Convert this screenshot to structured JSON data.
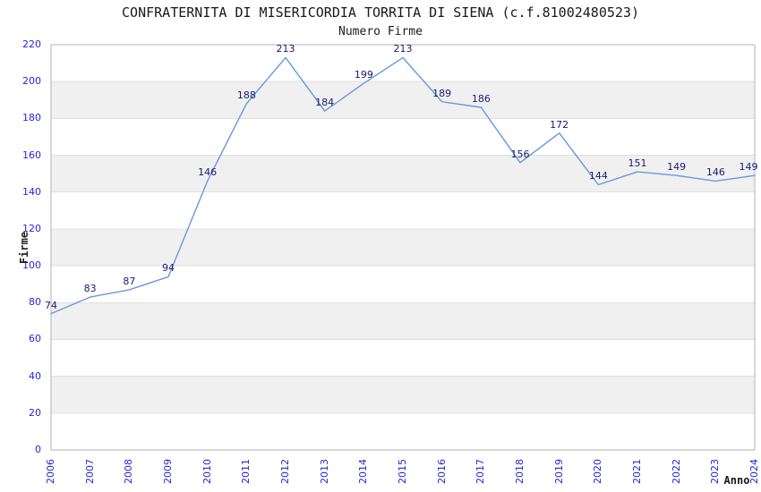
{
  "chart_data": {
    "type": "line",
    "title": "CONFRATERNITA DI MISERICORDIA TORRITA DI SIENA (c.f.81002480523)",
    "subtitle": "Numero Firme",
    "xlabel": "Anno",
    "ylabel": "Firme",
    "categories": [
      "2006",
      "2007",
      "2008",
      "2009",
      "2010",
      "2011",
      "2012",
      "2013",
      "2014",
      "2015",
      "2016",
      "2017",
      "2018",
      "2019",
      "2020",
      "2021",
      "2022",
      "2023",
      "2024"
    ],
    "values": [
      74,
      83,
      87,
      94,
      146,
      188,
      213,
      184,
      199,
      213,
      189,
      186,
      156,
      172,
      144,
      151,
      149,
      146,
      149
    ],
    "ylim": [
      0,
      220
    ],
    "ytick_step": 20,
    "grid": true,
    "banded_background": true,
    "legend_position": "none",
    "data_labels_shown": true,
    "colors": {
      "line": "#6699dd",
      "tick_labels": "#2626d8",
      "data_labels": "#191970",
      "band": "#f0f0f0",
      "grid": "#e0e0e0",
      "border": "#b3b3b3",
      "text": "#1a1a1a",
      "background": "#ffffff"
    }
  }
}
